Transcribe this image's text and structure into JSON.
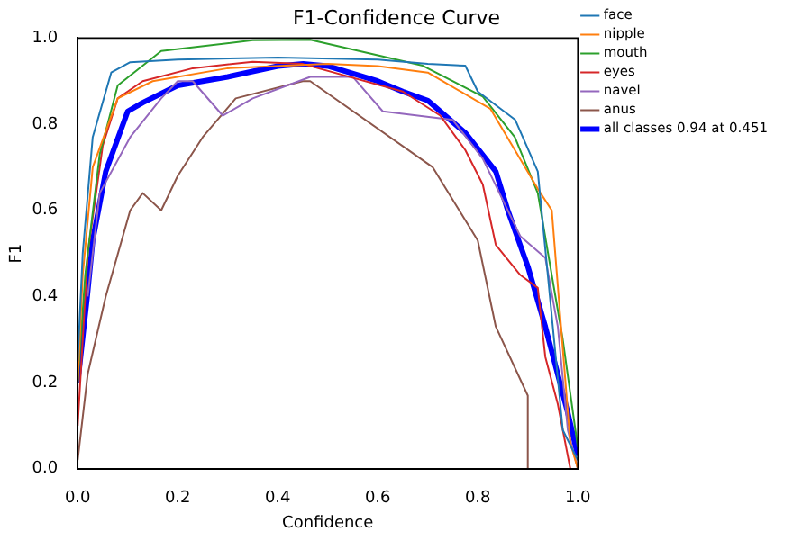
{
  "chart_data": {
    "type": "line",
    "title": "F1-Confidence Curve",
    "xlabel": "Confidence",
    "ylabel": "F1",
    "xlim": [
      0,
      1
    ],
    "ylim": [
      0,
      1
    ],
    "xticks": [
      {
        "value": 0,
        "label": "0.0"
      },
      {
        "value": 0.2,
        "label": "0.2"
      },
      {
        "value": 0.4,
        "label": "0.4"
      },
      {
        "value": 0.6,
        "label": "0.6"
      },
      {
        "value": 0.8,
        "label": "0.8"
      },
      {
        "value": 1,
        "label": "1.0"
      }
    ],
    "yticks": [
      {
        "value": 0,
        "label": "0.0"
      },
      {
        "value": 0.2,
        "label": "0.2"
      },
      {
        "value": 0.4,
        "label": "0.4"
      },
      {
        "value": 0.6,
        "label": "0.6"
      },
      {
        "value": 0.8,
        "label": "0.8"
      },
      {
        "value": 1,
        "label": "1.0"
      }
    ],
    "grid": false,
    "legend": "right",
    "marker": "none",
    "series": [
      {
        "name": "face",
        "color": "#1f77b4",
        "x": [
          0,
          0.01,
          0.03,
          0.067,
          0.105,
          0.2,
          0.4,
          0.6,
          0.7,
          0.775,
          0.8,
          0.875,
          0.92,
          0.97,
          1.0
        ],
        "values": [
          0.25,
          0.5,
          0.77,
          0.92,
          0.944,
          0.95,
          0.955,
          0.95,
          0.94,
          0.936,
          0.876,
          0.81,
          0.69,
          0.09,
          0.02
        ]
      },
      {
        "name": "nipple",
        "color": "#ff7f0e",
        "x": [
          0,
          0.01,
          0.03,
          0.08,
          0.15,
          0.3,
          0.5,
          0.6,
          0.7,
          0.825,
          0.92,
          0.948,
          0.985,
          1.0
        ],
        "values": [
          0.2,
          0.45,
          0.7,
          0.86,
          0.9,
          0.93,
          0.94,
          0.935,
          0.92,
          0.836,
          0.65,
          0.6,
          0.06,
          0.0
        ]
      },
      {
        "name": "mouth",
        "color": "#2ca02c",
        "x": [
          0,
          0.015,
          0.044,
          0.08,
          0.167,
          0.35,
          0.465,
          0.69,
          0.81,
          0.874,
          0.92,
          0.97,
          1.0
        ],
        "values": [
          0.2,
          0.45,
          0.73,
          0.89,
          0.97,
          0.995,
          0.996,
          0.936,
          0.864,
          0.77,
          0.64,
          0.3,
          0.05
        ]
      },
      {
        "name": "eyes",
        "color": "#d62728",
        "x": [
          0,
          0.02,
          0.05,
          0.08,
          0.13,
          0.23,
          0.35,
          0.45,
          0.65,
          0.725,
          0.775,
          0.81,
          0.836,
          0.885,
          0.92,
          0.935,
          0.96,
          0.985
        ],
        "values": [
          0.1,
          0.5,
          0.75,
          0.86,
          0.9,
          0.93,
          0.945,
          0.94,
          0.876,
          0.82,
          0.74,
          0.66,
          0.52,
          0.45,
          0.42,
          0.26,
          0.15,
          0.0
        ]
      },
      {
        "name": "navel",
        "color": "#9467bd",
        "x": [
          0.02,
          0.044,
          0.105,
          0.167,
          0.2,
          0.23,
          0.29,
          0.35,
          0.465,
          0.55,
          0.61,
          0.75,
          0.81,
          0.885,
          0.935,
          0.96,
          0.98,
          1.0
        ],
        "values": [
          0.4,
          0.64,
          0.77,
          0.86,
          0.9,
          0.9,
          0.82,
          0.86,
          0.91,
          0.91,
          0.83,
          0.81,
          0.72,
          0.54,
          0.49,
          0.33,
          0.09,
          0.0
        ]
      },
      {
        "name": "anus",
        "color": "#8c564b",
        "x": [
          0,
          0.02,
          0.056,
          0.105,
          0.13,
          0.167,
          0.2,
          0.25,
          0.316,
          0.45,
          0.465,
          0.71,
          0.8,
          0.836,
          0.9,
          0.9
        ],
        "values": [
          0.02,
          0.22,
          0.4,
          0.6,
          0.64,
          0.6,
          0.68,
          0.77,
          0.86,
          0.9,
          0.9,
          0.7,
          0.53,
          0.33,
          0.17,
          0.0
        ]
      },
      {
        "name": "all classes 0.94 at 0.451",
        "color": "#0000ff",
        "x": [
          0,
          0.019,
          0.03,
          0.056,
          0.1,
          0.13,
          0.2,
          0.3,
          0.4,
          0.451,
          0.5,
          0.6,
          0.65,
          0.7,
          0.775,
          0.836,
          0.86,
          0.9,
          0.935,
          0.98,
          1.0
        ],
        "values": [
          0.2,
          0.4,
          0.53,
          0.69,
          0.83,
          0.85,
          0.89,
          0.91,
          0.935,
          0.94,
          0.935,
          0.9,
          0.876,
          0.855,
          0.78,
          0.69,
          0.6,
          0.47,
          0.33,
          0.13,
          0.03
        ]
      }
    ]
  }
}
